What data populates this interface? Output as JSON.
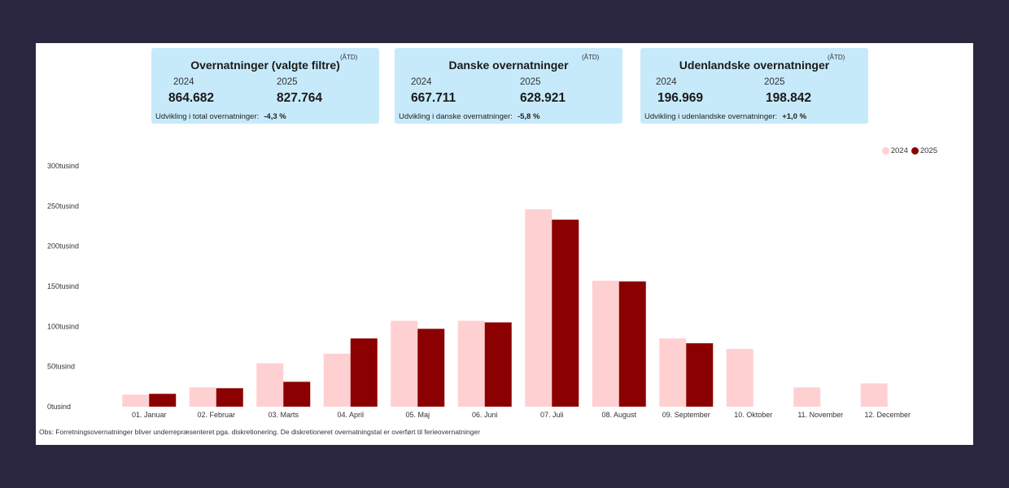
{
  "cards": [
    {
      "title": "Overnatninger (valgte filtre)",
      "atd": "(ÅTD)",
      "year1": "2024",
      "value1": "864.682",
      "year2": "2025",
      "value2": "827.764",
      "dev_label": "Udvikling i total overnatninger:",
      "dev_value": "-4,3 %"
    },
    {
      "title": "Danske overnatninger",
      "atd": "(ÅTD)",
      "year1": "2024",
      "value1": "667.711",
      "year2": "2025",
      "value2": "628.921",
      "dev_label": "Udvikling i danske overnatninger:",
      "dev_value": "-5,8 %"
    },
    {
      "title": "Udenlandske overnatninger",
      "atd": "(ÅTD)",
      "year1": "2024",
      "value1": "196.969",
      "year2": "2025",
      "value2": "198.842",
      "dev_label": "Udvikling i udenlandske overnatninger:",
      "dev_value": "+1,0 %"
    }
  ],
  "note": "Obs: Forretningsovernatninger bliver underrepræsenteret pga. diskretionering. De diskretioneret overnatningstal er overført til ferieovernatninger",
  "colors": {
    "s2024": "#ffd0d2",
    "s2025": "#8b0000"
  },
  "chart_data": {
    "type": "bar",
    "title": "",
    "xlabel": "",
    "ylabel": "",
    "ylim": [
      0,
      300000
    ],
    "yticks": [
      0,
      50000,
      100000,
      150000,
      200000,
      250000,
      300000
    ],
    "ytick_labels": [
      "0tusind",
      "50tusind",
      "100tusind",
      "150tusind",
      "200tusind",
      "250tusind",
      "300tusind"
    ],
    "legend_position": "top-right",
    "categories": [
      "01. Januar",
      "02. Februar",
      "03. Marts",
      "04. April",
      "05. Maj",
      "06. Juni",
      "07. Juli",
      "08. August",
      "09. September",
      "10. Oktober",
      "11. November",
      "12. December"
    ],
    "series": [
      {
        "name": "2024",
        "values": [
          15000,
          24000,
          54000,
          66000,
          107000,
          107000,
          246000,
          157000,
          85000,
          72000,
          24000,
          29000
        ]
      },
      {
        "name": "2025",
        "values": [
          16000,
          23000,
          31000,
          85000,
          97000,
          105000,
          233000,
          156000,
          79000,
          null,
          null,
          null
        ]
      }
    ]
  }
}
